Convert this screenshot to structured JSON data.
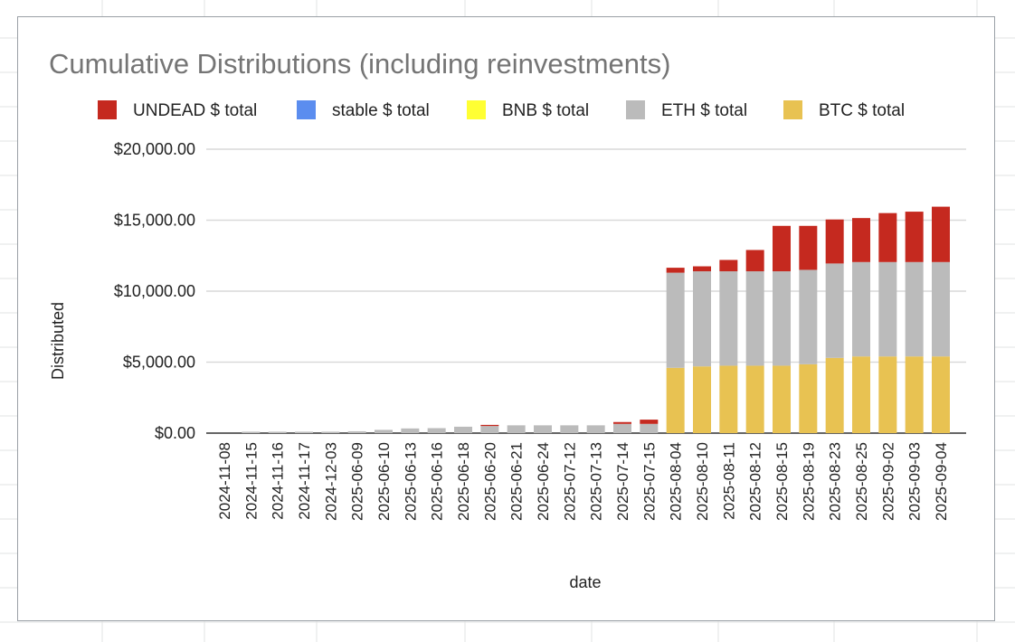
{
  "chart_data": {
    "type": "bar",
    "stacked": true,
    "title": "Cumulative Distributions (including reinvestments)",
    "xlabel": "date",
    "ylabel": "Distributed",
    "ylim": [
      0,
      20000
    ],
    "y_ticks": [
      "$0.00",
      "$5,000.00",
      "$10,000.00",
      "$15,000.00",
      "$20,000.00"
    ],
    "legend_position": "top",
    "gridlines": true,
    "categories": [
      "2024-11-08",
      "2024-11-15",
      "2024-11-16",
      "2024-11-17",
      "2024-12-03",
      "2025-06-09",
      "2025-06-10",
      "2025-06-13",
      "2025-06-16",
      "2025-06-18",
      "2025-06-20",
      "2025-06-21",
      "2025-06-24",
      "2025-07-12",
      "2025-07-13",
      "2025-07-14",
      "2025-07-15",
      "2025-08-04",
      "2025-08-10",
      "2025-08-11",
      "2025-08-12",
      "2025-08-15",
      "2025-08-19",
      "2025-08-23",
      "2025-08-25",
      "2025-09-02",
      "2025-09-03",
      "2025-09-04"
    ],
    "series": [
      {
        "name": "BTC $ total",
        "color": "#e8c252",
        "values": [
          0,
          0,
          0,
          0,
          0,
          0,
          0,
          0,
          0,
          0,
          0,
          0,
          0,
          0,
          0,
          0,
          0,
          4600,
          4700,
          4750,
          4750,
          4750,
          4850,
          5300,
          5400,
          5400,
          5400,
          5400
        ]
      },
      {
        "name": "ETH $ total",
        "color": "#bbbbbb",
        "values": [
          0,
          100,
          100,
          100,
          100,
          130,
          230,
          330,
          350,
          450,
          500,
          550,
          550,
          550,
          550,
          650,
          650,
          6700,
          6700,
          6650,
          6650,
          6650,
          6650,
          6650,
          6650,
          6650,
          6650,
          6650
        ]
      },
      {
        "name": "BNB $ total",
        "color": "#ffff33",
        "values": [
          0,
          0,
          0,
          0,
          0,
          0,
          0,
          0,
          0,
          0,
          0,
          0,
          0,
          0,
          0,
          0,
          0,
          0,
          0,
          0,
          0,
          0,
          0,
          0,
          0,
          0,
          0,
          0
        ]
      },
      {
        "name": "stable $ total",
        "color": "#5b8def",
        "values": [
          0,
          0,
          0,
          0,
          0,
          0,
          0,
          0,
          0,
          0,
          0,
          0,
          0,
          0,
          0,
          0,
          0,
          0,
          0,
          0,
          0,
          0,
          0,
          0,
          0,
          0,
          0,
          0
        ]
      },
      {
        "name": "UNDEAD $ total",
        "color": "#c5291f",
        "values": [
          0,
          0,
          0,
          0,
          0,
          0,
          0,
          0,
          0,
          0,
          80,
          0,
          0,
          0,
          0,
          130,
          300,
          350,
          350,
          800,
          1500,
          3200,
          3100,
          3100,
          3100,
          3450,
          3550,
          3900
        ]
      }
    ],
    "legend_order": [
      "UNDEAD $ total",
      "stable $ total",
      "BNB $ total",
      "ETH $ total",
      "BTC $ total"
    ]
  }
}
